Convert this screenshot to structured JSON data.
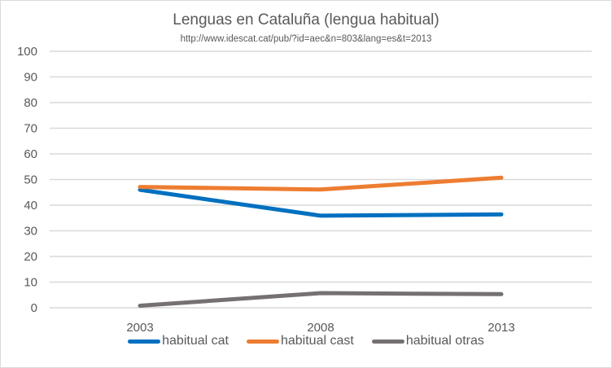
{
  "chart_data": {
    "type": "line",
    "title": "Lenguas en Cataluña (lengua habitual)",
    "subtitle": "http://www.idescat.cat/pub/?id=aec&n=803&lang=es&t=2013",
    "xlabel": "",
    "ylabel": "",
    "categories": [
      "2003",
      "2008",
      "2013"
    ],
    "ylim": [
      0,
      100
    ],
    "yticks": [
      0,
      10,
      20,
      30,
      40,
      50,
      60,
      70,
      80,
      90,
      100
    ],
    "grid": true,
    "legend_position": "bottom",
    "series": [
      {
        "name": "habitual cat",
        "color": "#0070c0",
        "values": [
          46.0,
          35.9,
          36.4
        ]
      },
      {
        "name": "habitual cast",
        "color": "#ed7d31",
        "values": [
          47.1,
          46.1,
          50.7
        ]
      },
      {
        "name": "habitual otras",
        "color": "#767171",
        "values": [
          0.8,
          5.7,
          5.3
        ]
      }
    ]
  }
}
